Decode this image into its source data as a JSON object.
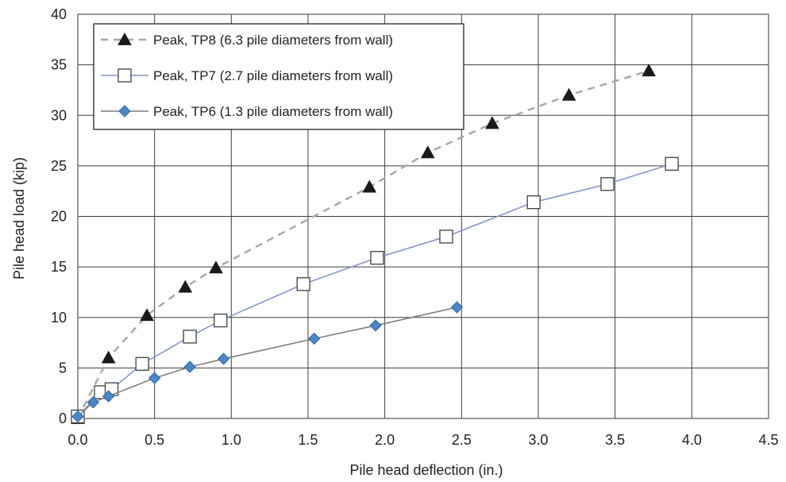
{
  "chart_data": {
    "type": "line",
    "title": "",
    "xlabel": "Pile head deflection (in.)",
    "ylabel": "Pile head load (kip)",
    "xlim": [
      0,
      4.5
    ],
    "ylim": [
      0,
      40
    ],
    "x_ticks": [
      "0.0",
      "0.5",
      "1.0",
      "1.5",
      "2.0",
      "2.5",
      "3.0",
      "3.5",
      "4.0",
      "4.5"
    ],
    "y_ticks": [
      "0",
      "5",
      "10",
      "15",
      "20",
      "25",
      "30",
      "35",
      "40"
    ],
    "grid": true,
    "legend_position": "top-left",
    "series": [
      {
        "name": "Peak, TP8 (6.3 pile diameters from wall)",
        "marker": "triangle",
        "line_style": "dashed",
        "color": "#a6a6a6",
        "marker_color": "#1a1a1a",
        "points": [
          [
            0.0,
            0.0
          ],
          [
            0.2,
            6.0
          ],
          [
            0.45,
            10.2
          ],
          [
            0.7,
            13.0
          ],
          [
            0.9,
            14.9
          ],
          [
            1.9,
            22.9
          ],
          [
            2.28,
            26.3
          ],
          [
            2.7,
            29.2
          ],
          [
            3.2,
            32.0
          ],
          [
            3.72,
            34.4
          ]
        ]
      },
      {
        "name": "Peak, TP7 (2.7 pile diameters from wall)",
        "marker": "square",
        "line_style": "solid",
        "color": "#8497c8",
        "marker_color": "#ffffff",
        "points": [
          [
            0.0,
            0.2
          ],
          [
            0.15,
            2.6
          ],
          [
            0.22,
            2.9
          ],
          [
            0.42,
            5.4
          ],
          [
            0.73,
            8.1
          ],
          [
            0.93,
            9.7
          ],
          [
            1.47,
            13.3
          ],
          [
            1.95,
            15.9
          ],
          [
            2.4,
            18.0
          ],
          [
            2.97,
            21.4
          ],
          [
            3.45,
            23.2
          ],
          [
            3.87,
            25.2
          ]
        ]
      },
      {
        "name": "Peak, TP6 (1.3 pile diameters from wall)",
        "marker": "diamond",
        "line_style": "solid",
        "color": "#7f7f7f",
        "marker_color": "#4a86c8",
        "points": [
          [
            0.0,
            0.2
          ],
          [
            0.1,
            1.6
          ],
          [
            0.2,
            2.2
          ],
          [
            0.5,
            4.0
          ],
          [
            0.73,
            5.1
          ],
          [
            0.95,
            5.9
          ],
          [
            1.54,
            7.9
          ],
          [
            1.94,
            9.2
          ],
          [
            2.47,
            11.0
          ]
        ]
      }
    ]
  }
}
